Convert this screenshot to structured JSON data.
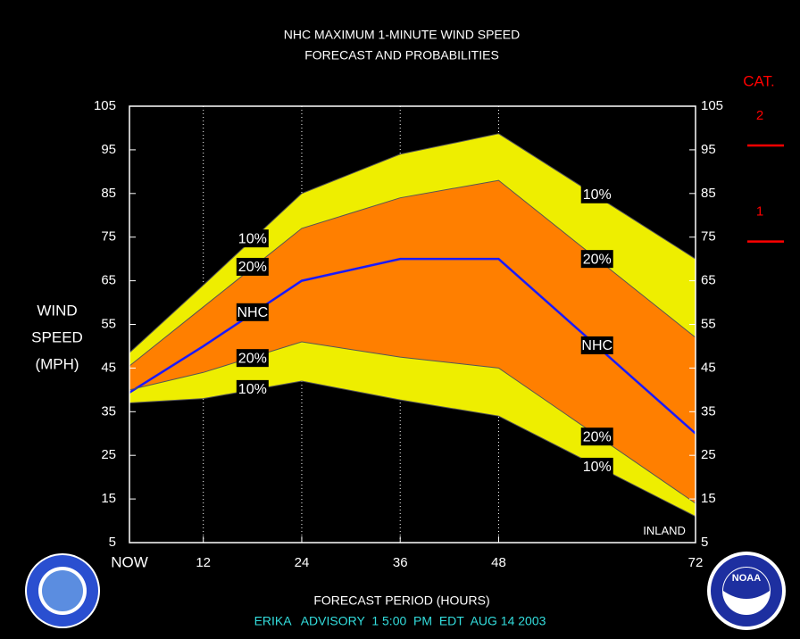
{
  "chart_data": {
    "type": "band",
    "title": [
      "NHC MAXIMUM 1-MINUTE WIND SPEED",
      "FORECAST AND PROBABILITIES"
    ],
    "ylabel": [
      "WIND",
      "SPEED",
      "(MPH)"
    ],
    "xlabel": "FORECAST PERIOD (HOURS)",
    "footer": "ERIKA   ADVISORY  1 5:00  PM  EDT  AUG 14 2003",
    "x": [
      3,
      12,
      24,
      36,
      48,
      72
    ],
    "series": [
      {
        "color": "#555555",
        "values": [
          48.5,
          64,
          85,
          94,
          98.7,
          70
        ]
      },
      {
        "color": "#555555",
        "values": [
          45.5,
          59,
          77,
          84,
          88,
          52
        ]
      },
      {
        "color": "#1a1aff",
        "values": [
          39.4,
          50,
          65,
          70,
          70,
          30
        ]
      },
      {
        "color": "#555555",
        "values": [
          40,
          44,
          51,
          47.5,
          45,
          14
        ]
      },
      {
        "color": "#555555",
        "values": [
          37,
          38,
          42,
          37.7,
          34,
          11
        ]
      }
    ],
    "outer_fill": "#eeee00",
    "inner_fill": "#ff7f00",
    "xlim": [
      3,
      72
    ],
    "xticks": [
      {
        "value": 3,
        "label": "NOW"
      },
      12,
      24,
      36,
      48,
      72
    ],
    "xgrid": [
      12,
      24,
      36,
      48
    ],
    "ylim": [
      5,
      105
    ],
    "yticks": [
      5,
      15,
      25,
      35,
      45,
      55,
      65,
      75,
      85,
      95,
      105
    ],
    "annotations": [
      {
        "text": "10%",
        "x": 18,
        "y": 74.7,
        "boxed": true
      },
      {
        "text": "20%",
        "x": 18,
        "y": 68.2,
        "boxed": true
      },
      {
        "text": "NHC",
        "x": 18,
        "y": 57.8,
        "boxed": true
      },
      {
        "text": "20%",
        "x": 18,
        "y": 47.3,
        "boxed": true
      },
      {
        "text": "10%",
        "x": 18,
        "y": 40.2,
        "boxed": true
      },
      {
        "text": "10%",
        "x": 60,
        "y": 84.8,
        "boxed": true
      },
      {
        "text": "20%",
        "x": 60,
        "y": 70,
        "boxed": true
      },
      {
        "text": "NHC",
        "x": 60,
        "y": 50.2,
        "boxed": true
      },
      {
        "text": "20%",
        "x": 60,
        "y": 29.3,
        "boxed": true
      },
      {
        "text": "10%",
        "x": 60,
        "y": 22.4,
        "boxed": true
      },
      {
        "text": "INLAND",
        "x": 68.2,
        "y": 7.7,
        "boxed": false
      }
    ],
    "category_scale": {
      "title": "CAT.",
      "labels": [
        "2",
        "1"
      ],
      "thresholds": [
        96,
        74
      ],
      "color": "#ff0000"
    },
    "logo_text": "NOAA"
  }
}
